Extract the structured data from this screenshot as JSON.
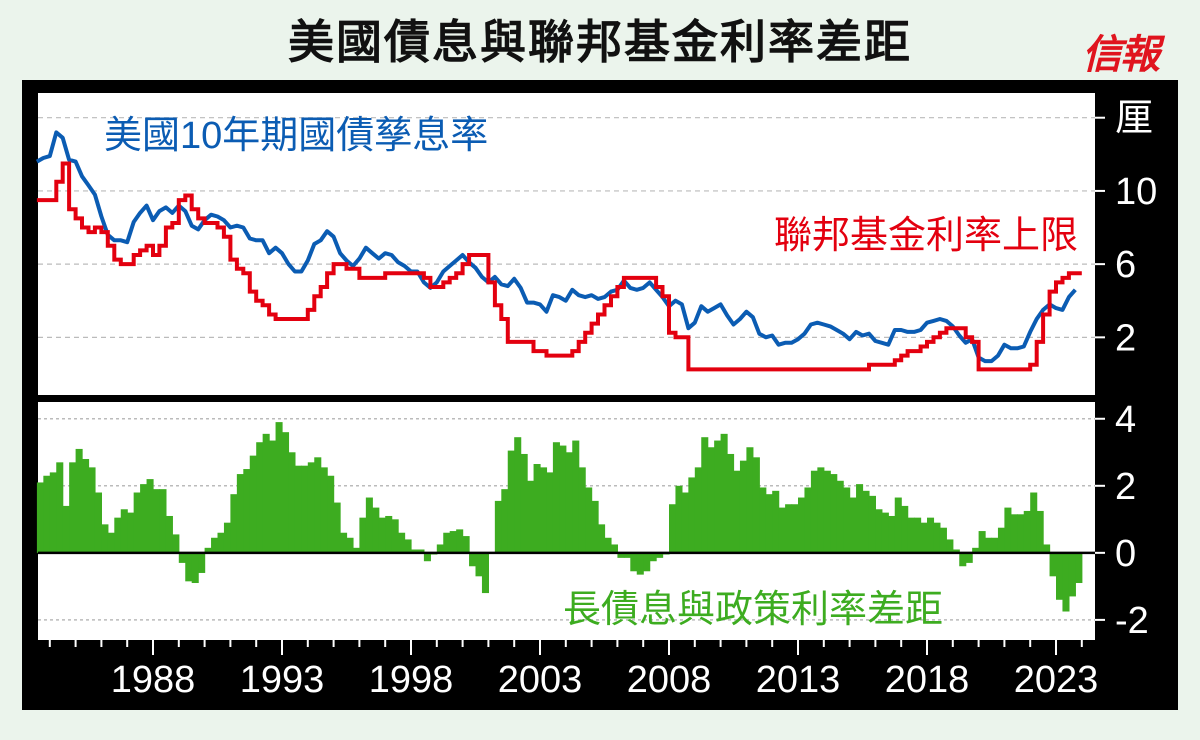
{
  "title": "美國債息與聯邦基金利率差距",
  "logo": "信報",
  "chart_data": [
    {
      "type": "line",
      "panel": "top",
      "unit_label": "厘",
      "y_ticks": [
        2,
        6,
        10,
        14
      ],
      "y_tick_labels": [
        "2",
        "6",
        "10",
        "厘"
      ],
      "ylim": [
        -1.15,
        15.35
      ],
      "grid": true,
      "series": [
        {
          "name": "美國10年期國債孳息率",
          "key": "y10",
          "color": "#0b5cb3"
        },
        {
          "name": "聯邦基金利率上限",
          "key": "fed",
          "color": "#e3000f",
          "step": true
        }
      ]
    },
    {
      "type": "area",
      "panel": "bottom",
      "y_ticks": [
        -2,
        0,
        2,
        4
      ],
      "y_tick_labels": [
        "-2",
        "0",
        "2",
        "4"
      ],
      "ylim": [
        -2.6,
        4.5
      ],
      "grid": true,
      "series": [
        {
          "name": "長債息與政策利率差距",
          "key": "spread",
          "color": "#3dac20"
        }
      ]
    }
  ],
  "x_axis": {
    "ticks": [
      1988,
      1993,
      1998,
      2003,
      2008,
      2013,
      2018,
      2023
    ],
    "tick_labels": [
      "1988",
      "1993",
      "1998",
      "2003",
      "2008",
      "2013",
      "2018",
      "2023"
    ],
    "xlim": [
      1983.5,
      2024.5
    ],
    "minor_every": 1
  },
  "columns": [
    "year",
    "y10",
    "fed",
    "spread"
  ],
  "rows": [
    [
      1983.5,
      11.6,
      9.5,
      2.1
    ],
    [
      1983.75,
      11.8,
      9.5,
      2.3
    ],
    [
      1984,
      11.9,
      9.5,
      2.4
    ],
    [
      1984.25,
      13.2,
      10.5,
      2.7
    ],
    [
      1984.5,
      12.9,
      11.5,
      1.4
    ],
    [
      1984.75,
      11.7,
      9.0,
      2.7
    ],
    [
      1985,
      11.6,
      8.5,
      3.1
    ],
    [
      1985.25,
      10.8,
      8.0,
      2.8
    ],
    [
      1985.5,
      10.3,
      7.75,
      2.55
    ],
    [
      1985.75,
      9.8,
      8.0,
      1.8
    ],
    [
      1986,
      8.6,
      7.75,
      0.85
    ],
    [
      1986.25,
      7.6,
      7.0,
      0.6
    ],
    [
      1986.5,
      7.3,
      6.25,
      1.05
    ],
    [
      1986.75,
      7.3,
      6.0,
      1.3
    ],
    [
      1987,
      7.2,
      6.0,
      1.2
    ],
    [
      1987.25,
      8.3,
      6.5,
      1.8
    ],
    [
      1987.5,
      8.8,
      6.75,
      2.05
    ],
    [
      1987.75,
      9.2,
      7.0,
      2.2
    ],
    [
      1988,
      8.4,
      6.5,
      1.9
    ],
    [
      1988.25,
      8.9,
      7.0,
      1.9
    ],
    [
      1988.5,
      9.1,
      8.0,
      1.1
    ],
    [
      1988.75,
      8.8,
      8.25,
      0.55
    ],
    [
      1989,
      9.2,
      9.5,
      -0.3
    ],
    [
      1989.25,
      8.9,
      9.75,
      -0.85
    ],
    [
      1989.5,
      8.1,
      9.0,
      -0.9
    ],
    [
      1989.75,
      7.9,
      8.5,
      -0.6
    ],
    [
      1990,
      8.4,
      8.25,
      0.15
    ],
    [
      1990.25,
      8.7,
      8.25,
      0.45
    ],
    [
      1990.5,
      8.6,
      8.0,
      0.6
    ],
    [
      1990.75,
      8.4,
      7.5,
      0.9
    ],
    [
      1991,
      8.0,
      6.25,
      1.75
    ],
    [
      1991.25,
      8.1,
      5.75,
      2.35
    ],
    [
      1991.5,
      8.0,
      5.5,
      2.5
    ],
    [
      1991.75,
      7.4,
      4.5,
      2.9
    ],
    [
      1992,
      7.3,
      4.0,
      3.3
    ],
    [
      1992.25,
      7.3,
      3.75,
      3.55
    ],
    [
      1992.5,
      6.6,
      3.25,
      3.35
    ],
    [
      1992.75,
      6.9,
      3.0,
      3.9
    ],
    [
      1993,
      6.6,
      3.0,
      3.6
    ],
    [
      1993.25,
      6.0,
      3.0,
      3.0
    ],
    [
      1993.5,
      5.6,
      3.0,
      2.6
    ],
    [
      1993.75,
      5.6,
      3.0,
      2.6
    ],
    [
      1994,
      6.2,
      3.5,
      2.7
    ],
    [
      1994.25,
      7.1,
      4.25,
      2.85
    ],
    [
      1994.5,
      7.3,
      4.75,
      2.55
    ],
    [
      1994.75,
      7.8,
      5.5,
      2.3
    ],
    [
      1995,
      7.5,
      6.0,
      1.5
    ],
    [
      1995.25,
      6.6,
      6.0,
      0.6
    ],
    [
      1995.5,
      6.2,
      5.75,
      0.45
    ],
    [
      1995.75,
      5.9,
      5.75,
      0.15
    ],
    [
      1996,
      6.3,
      5.25,
      1.05
    ],
    [
      1996.25,
      6.9,
      5.25,
      1.65
    ],
    [
      1996.5,
      6.6,
      5.25,
      1.35
    ],
    [
      1996.75,
      6.3,
      5.25,
      1.05
    ],
    [
      1997,
      6.6,
      5.5,
      1.1
    ],
    [
      1997.25,
      6.5,
      5.5,
      1.0
    ],
    [
      1997.5,
      6.1,
      5.5,
      0.6
    ],
    [
      1997.75,
      5.9,
      5.5,
      0.4
    ],
    [
      1998,
      5.6,
      5.5,
      0.1
    ],
    [
      1998.25,
      5.6,
      5.5,
      0.1
    ],
    [
      1998.5,
      5.0,
      5.25,
      -0.25
    ],
    [
      1998.75,
      4.7,
      4.75,
      -0.05
    ],
    [
      1999,
      5.0,
      4.75,
      0.25
    ],
    [
      1999.25,
      5.6,
      5.0,
      0.6
    ],
    [
      1999.5,
      5.9,
      5.25,
      0.65
    ],
    [
      1999.75,
      6.2,
      5.5,
      0.7
    ],
    [
      2000,
      6.5,
      6.0,
      0.5
    ],
    [
      2000.25,
      6.1,
      6.5,
      -0.4
    ],
    [
      2000.5,
      5.8,
      6.5,
      -0.7
    ],
    [
      2000.75,
      5.3,
      6.5,
      -1.2
    ],
    [
      2001,
      5.0,
      5.0,
      0.0
    ],
    [
      2001.25,
      5.3,
      3.75,
      1.55
    ],
    [
      2001.5,
      4.9,
      3.0,
      1.9
    ],
    [
      2001.75,
      4.8,
      1.75,
      3.05
    ],
    [
      2002,
      5.2,
      1.75,
      3.45
    ],
    [
      2002.25,
      4.7,
      1.75,
      2.95
    ],
    [
      2002.5,
      3.9,
      1.75,
      2.15
    ],
    [
      2002.75,
      3.9,
      1.25,
      2.65
    ],
    [
      2003,
      3.8,
      1.25,
      2.55
    ],
    [
      2003.25,
      3.4,
      1.0,
      2.4
    ],
    [
      2003.5,
      4.3,
      1.0,
      3.3
    ],
    [
      2003.75,
      4.2,
      1.0,
      3.2
    ],
    [
      2004,
      4.0,
      1.0,
      3.0
    ],
    [
      2004.25,
      4.6,
      1.25,
      3.35
    ],
    [
      2004.5,
      4.3,
      1.75,
      2.55
    ],
    [
      2004.75,
      4.2,
      2.25,
      1.95
    ],
    [
      2005,
      4.3,
      2.75,
      1.55
    ],
    [
      2005.25,
      4.1,
      3.25,
      0.85
    ],
    [
      2005.5,
      4.2,
      3.75,
      0.45
    ],
    [
      2005.75,
      4.5,
      4.25,
      0.25
    ],
    [
      2006,
      4.6,
      4.75,
      -0.15
    ],
    [
      2006.25,
      5.1,
      5.25,
      -0.15
    ],
    [
      2006.5,
      4.7,
      5.25,
      -0.55
    ],
    [
      2006.75,
      4.6,
      5.25,
      -0.65
    ],
    [
      2007,
      4.7,
      5.25,
      -0.55
    ],
    [
      2007.25,
      5.0,
      5.25,
      -0.25
    ],
    [
      2007.5,
      4.6,
      4.75,
      -0.15
    ],
    [
      2007.75,
      4.2,
      4.25,
      -0.05
    ],
    [
      2008,
      3.7,
      2.25,
      1.45
    ],
    [
      2008.25,
      4.0,
      2.0,
      2.0
    ],
    [
      2008.5,
      3.8,
      2.0,
      1.8
    ],
    [
      2008.75,
      2.5,
      0.25,
      2.25
    ],
    [
      2009,
      2.8,
      0.25,
      2.55
    ],
    [
      2009.25,
      3.7,
      0.25,
      3.45
    ],
    [
      2009.5,
      3.4,
      0.25,
      3.15
    ],
    [
      2009.75,
      3.6,
      0.25,
      3.35
    ],
    [
      2010,
      3.8,
      0.25,
      3.55
    ],
    [
      2010.25,
      3.2,
      0.25,
      2.95
    ],
    [
      2010.5,
      2.7,
      0.25,
      2.45
    ],
    [
      2010.75,
      3.0,
      0.25,
      2.75
    ],
    [
      2011,
      3.4,
      0.25,
      3.15
    ],
    [
      2011.25,
      3.1,
      0.25,
      2.85
    ],
    [
      2011.5,
      2.2,
      0.25,
      1.95
    ],
    [
      2011.75,
      2.0,
      0.25,
      1.75
    ],
    [
      2012,
      2.1,
      0.25,
      1.85
    ],
    [
      2012.25,
      1.6,
      0.25,
      1.35
    ],
    [
      2012.5,
      1.7,
      0.25,
      1.45
    ],
    [
      2012.75,
      1.7,
      0.25,
      1.45
    ],
    [
      2013,
      1.9,
      0.25,
      1.65
    ],
    [
      2013.25,
      2.2,
      0.25,
      1.95
    ],
    [
      2013.5,
      2.7,
      0.25,
      2.45
    ],
    [
      2013.75,
      2.8,
      0.25,
      2.55
    ],
    [
      2014,
      2.7,
      0.25,
      2.45
    ],
    [
      2014.25,
      2.6,
      0.25,
      2.35
    ],
    [
      2014.5,
      2.4,
      0.25,
      2.15
    ],
    [
      2014.75,
      2.2,
      0.25,
      1.95
    ],
    [
      2015,
      1.9,
      0.25,
      1.65
    ],
    [
      2015.25,
      2.3,
      0.25,
      2.05
    ],
    [
      2015.5,
      2.1,
      0.25,
      1.85
    ],
    [
      2015.75,
      2.2,
      0.5,
      1.7
    ],
    [
      2016,
      1.8,
      0.5,
      1.3
    ],
    [
      2016.25,
      1.7,
      0.5,
      1.2
    ],
    [
      2016.5,
      1.6,
      0.5,
      1.1
    ],
    [
      2016.75,
      2.4,
      0.75,
      1.65
    ],
    [
      2017,
      2.4,
      1.0,
      1.4
    ],
    [
      2017.25,
      2.3,
      1.25,
      1.05
    ],
    [
      2017.5,
      2.3,
      1.25,
      1.05
    ],
    [
      2017.75,
      2.4,
      1.5,
      0.9
    ],
    [
      2018,
      2.8,
      1.75,
      1.05
    ],
    [
      2018.25,
      2.9,
      2.0,
      0.9
    ],
    [
      2018.5,
      3.0,
      2.25,
      0.75
    ],
    [
      2018.75,
      2.9,
      2.5,
      0.4
    ],
    [
      2019,
      2.6,
      2.5,
      0.1
    ],
    [
      2019.25,
      2.1,
      2.5,
      -0.4
    ],
    [
      2019.5,
      1.7,
      2.0,
      -0.3
    ],
    [
      2019.75,
      1.9,
      1.75,
      0.15
    ],
    [
      2020,
      0.9,
      0.25,
      0.65
    ],
    [
      2020.25,
      0.7,
      0.25,
      0.45
    ],
    [
      2020.5,
      0.7,
      0.25,
      0.45
    ],
    [
      2020.75,
      1.0,
      0.25,
      0.75
    ],
    [
      2021,
      1.6,
      0.25,
      1.35
    ],
    [
      2021.25,
      1.4,
      0.25,
      1.15
    ],
    [
      2021.5,
      1.4,
      0.25,
      1.15
    ],
    [
      2021.75,
      1.5,
      0.25,
      1.25
    ],
    [
      2022,
      2.3,
      0.5,
      1.8
    ],
    [
      2022.25,
      3.0,
      1.75,
      1.25
    ],
    [
      2022.5,
      3.5,
      3.25,
      0.25
    ],
    [
      2022.75,
      3.8,
      4.5,
      -0.7
    ],
    [
      2023,
      3.6,
      5.0,
      -1.4
    ],
    [
      2023.25,
      3.5,
      5.25,
      -1.75
    ],
    [
      2023.5,
      4.2,
      5.5,
      -1.3
    ],
    [
      2023.75,
      4.6,
      5.5,
      -0.9
    ]
  ]
}
